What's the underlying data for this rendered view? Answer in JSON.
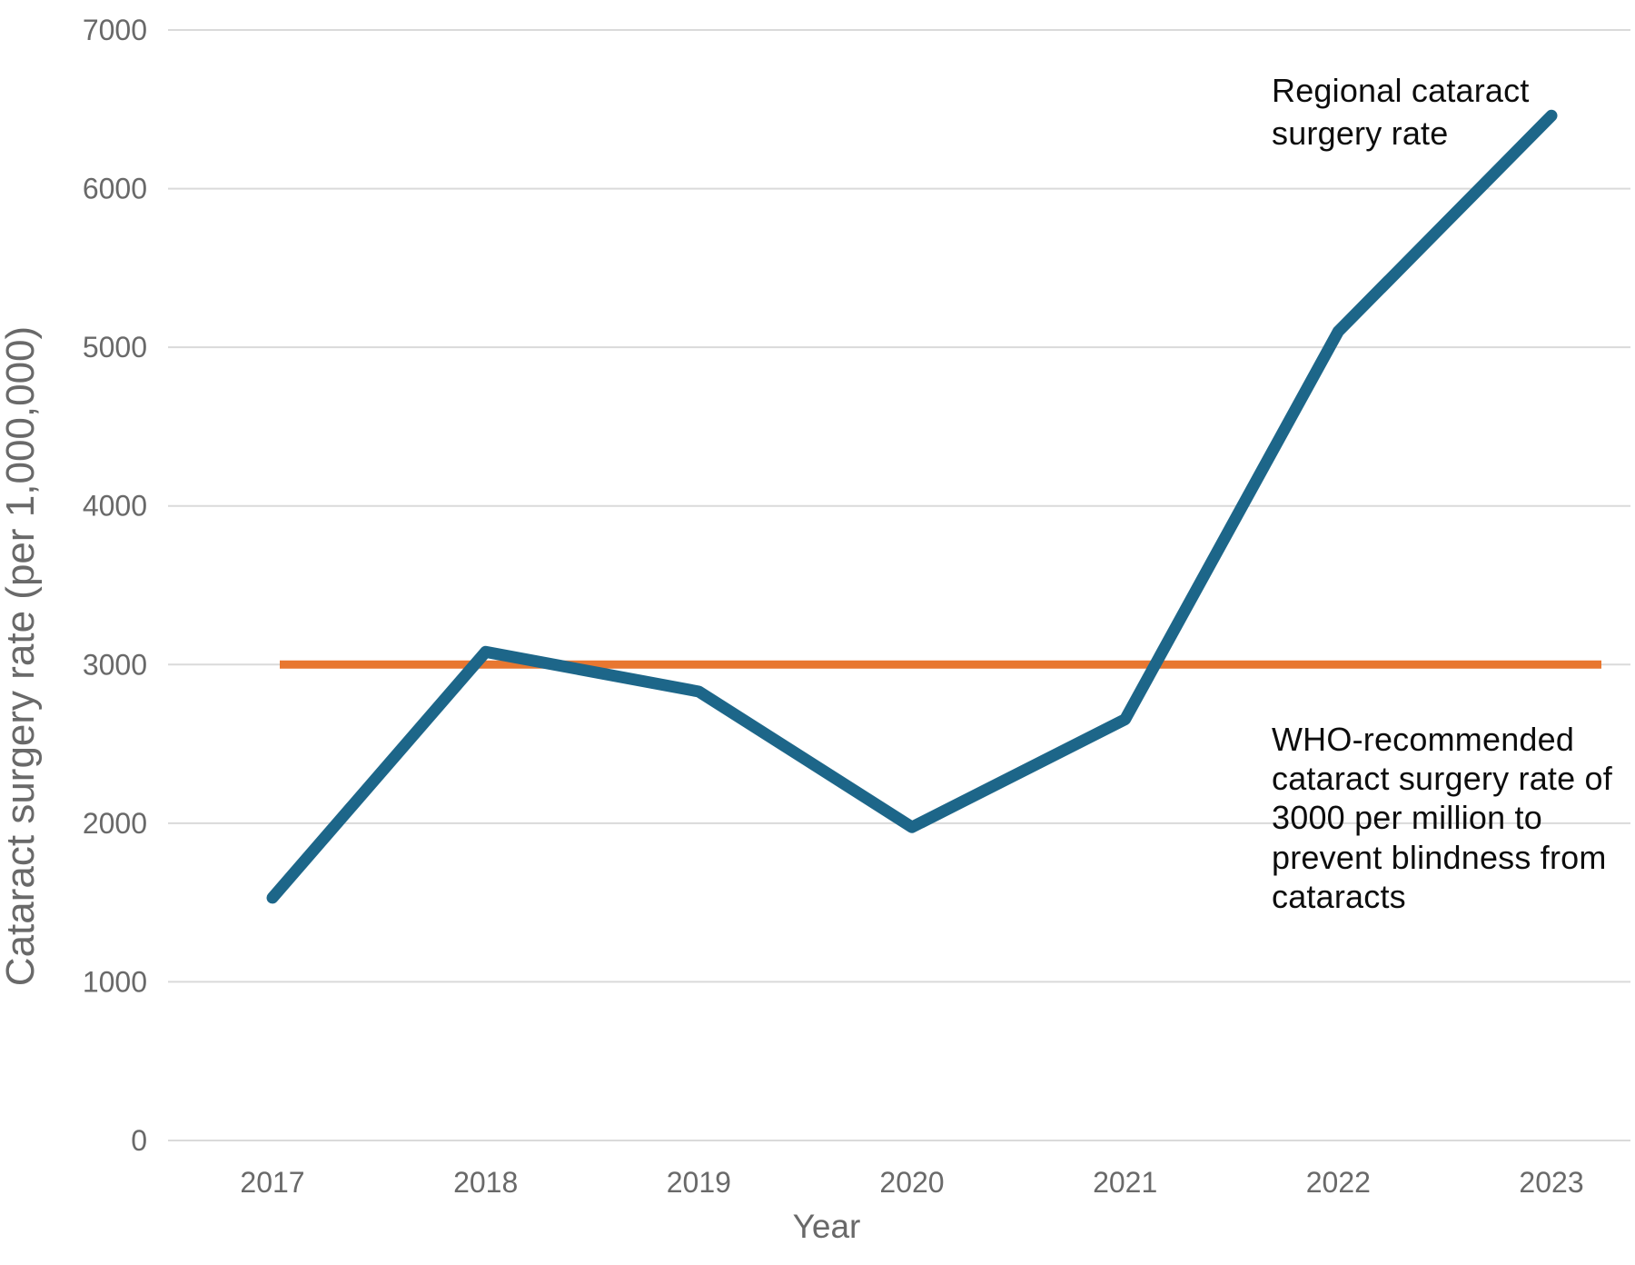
{
  "chart_data": {
    "type": "line",
    "title": "",
    "xlabel": "Year",
    "ylabel": "Cataract surgery rate (per 1,000,000)",
    "x": [
      "2017",
      "2018",
      "2019",
      "2020",
      "2021",
      "2022",
      "2023"
    ],
    "y_ticks": [
      0,
      1000,
      2000,
      3000,
      4000,
      5000,
      6000,
      7000
    ],
    "ylim": [
      0,
      7000
    ],
    "grid": "horizontal-only",
    "legend_position": "none (direct text labels on plot)",
    "series": [
      {
        "name": "Regional cataract surgery rate",
        "color": "#1D6689",
        "values": [
          1530,
          3080,
          2830,
          1975,
          2655,
          5100,
          6460
        ]
      }
    ],
    "reference_line": {
      "name": "WHO-recommended cataract surgery rate",
      "value": 3000,
      "color": "#E87730"
    },
    "annotations": [
      {
        "id": "series-label",
        "text": "Regional cataract\nsurgery rate"
      },
      {
        "id": "who-label",
        "text": "WHO-recommended\ncataract surgery rate of\n3000 per million to\nprevent blindness from\ncataracts"
      }
    ],
    "colors": {
      "gridline": "#DADADA",
      "tick_text": "#696969",
      "annotation_text": "#0d0d0d",
      "background": "#FFFFFF"
    }
  }
}
